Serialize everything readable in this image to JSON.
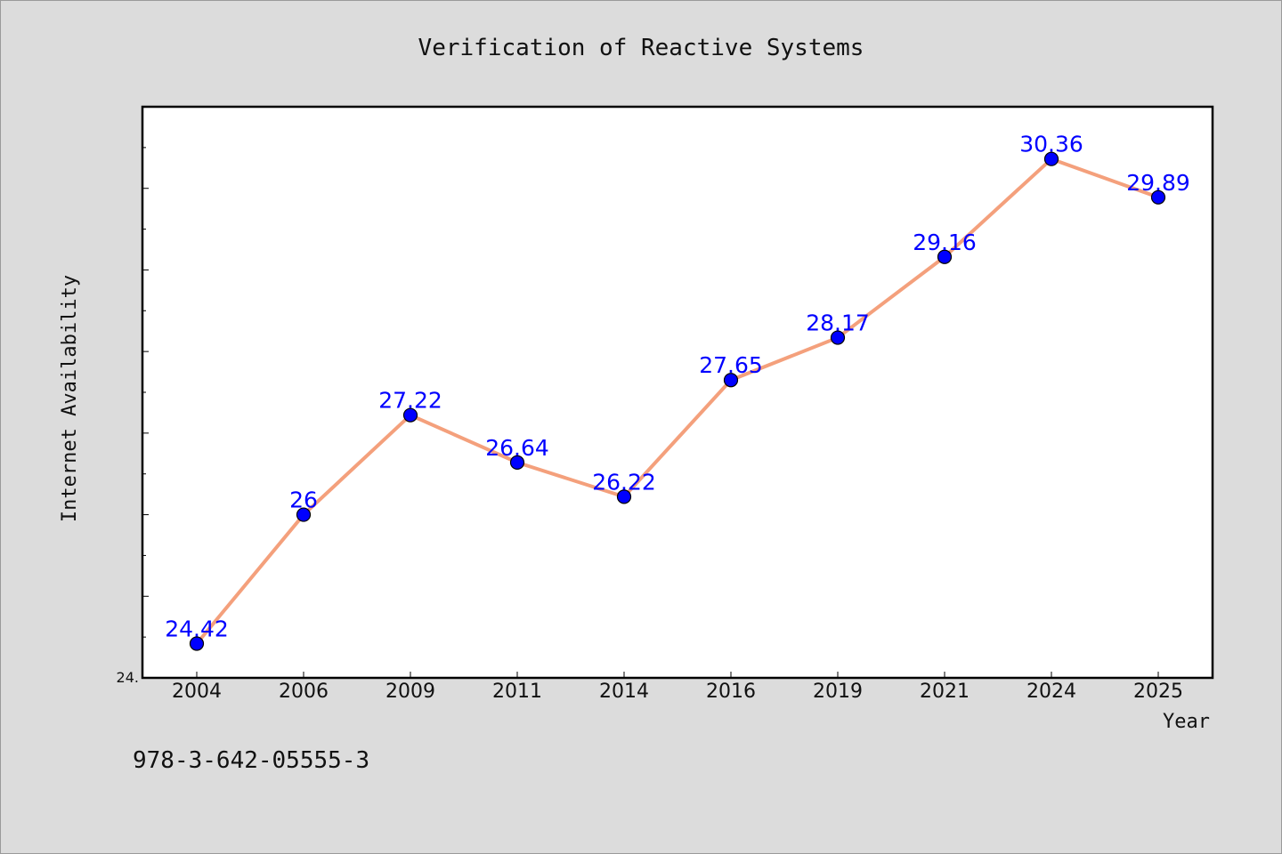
{
  "chart_data": {
    "type": "line",
    "title": "Verification of Reactive Systems",
    "xlabel": "Year",
    "ylabel": "Internet Availability",
    "categories": [
      "2004",
      "2006",
      "2009",
      "2011",
      "2014",
      "2016",
      "2019",
      "2021",
      "2024",
      "2025"
    ],
    "series": [
      {
        "values": [
          24.42,
          26,
          27.22,
          26.64,
          26.22,
          27.65,
          28.17,
          29.16,
          30.36,
          29.89
        ],
        "labels": [
          "24.42",
          "26",
          "27.22",
          "26.64",
          "26.22",
          "27.65",
          "28.17",
          "29.16",
          "30.36",
          "29.89"
        ]
      }
    ],
    "ylim": [
      24,
      31
    ],
    "y_min_label": "24.",
    "grid": false,
    "colors": {
      "line": "#f4a07c",
      "marker": "#0000ff",
      "data_label": "#0000ff",
      "plot_background": "#ffffff",
      "page_background": "#dcdcdc"
    }
  },
  "footer": {
    "isbn": "978-3-642-05555-3"
  }
}
